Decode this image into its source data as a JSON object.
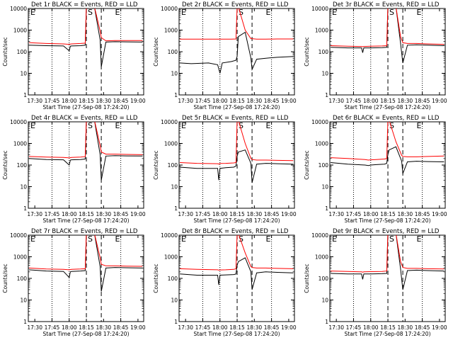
{
  "common": {
    "xlabel": "Start Time (27-Sep-08 17:24:20)",
    "ylabel": "Counts/sec",
    "x_tick_labels": [
      "17:30",
      "17:45",
      "18:00",
      "18:15",
      "18:30",
      "18:45",
      "19:00"
    ],
    "y_tick_labels": [
      "1",
      "10",
      "100",
      "1000",
      "10000"
    ],
    "marker_labels": [
      "E",
      "S",
      "E"
    ],
    "colors": {
      "events": "#000000",
      "lld": "#ff0000",
      "axes": "#000000",
      "background": "#ffffff"
    }
  },
  "chart_data": [
    {
      "type": "line",
      "title": "Det 1r  BLACK = Events, RED = LLD",
      "x_range": [
        "17:24:20",
        "19:05:00"
      ],
      "ylim": [
        1,
        10000
      ],
      "y_scale": "log",
      "grid": "dotted vertical",
      "x": [
        "17:25",
        "17:40",
        "17:55",
        "18:00",
        "18:01",
        "18:02",
        "18:10",
        "18:14",
        "18:15",
        "18:16",
        "18:22",
        "18:27",
        "18:28",
        "18:32",
        "18:40",
        "18:50",
        "19:04"
      ],
      "series": [
        {
          "name": "Events",
          "values": [
            200,
            190,
            185,
            110,
            180,
            185,
            190,
            200,
            12000,
            12000,
            12000,
            350,
            20,
            280,
            290,
            285,
            280
          ]
        },
        {
          "name": "LLD",
          "values": [
            260,
            240,
            230,
            220,
            225,
            230,
            240,
            250,
            12000,
            12000,
            12000,
            900,
            450,
            320,
            330,
            330,
            330
          ]
        }
      ]
    },
    {
      "type": "line",
      "title": "Det 2r  BLACK = Events, RED = LLD",
      "x_range": [
        "17:24:20",
        "19:05:00"
      ],
      "ylim": [
        1,
        10000
      ],
      "y_scale": "log",
      "grid": "dotted vertical",
      "x": [
        "17:25",
        "17:35",
        "17:50",
        "17:58",
        "18:00",
        "18:02",
        "18:10",
        "18:14",
        "18:15",
        "18:16",
        "18:22",
        "18:27",
        "18:28",
        "18:32",
        "18:40",
        "18:50",
        "19:04"
      ],
      "series": [
        {
          "name": "Events",
          "values": [
            30,
            28,
            30,
            25,
            10,
            30,
            35,
            40,
            60,
            500,
            800,
            50,
            15,
            45,
            50,
            55,
            60
          ]
        },
        {
          "name": "LLD",
          "values": [
            380,
            380,
            380,
            380,
            380,
            380,
            380,
            390,
            12000,
            12000,
            1000,
            400,
            400,
            380,
            380,
            390,
            390
          ]
        }
      ]
    },
    {
      "type": "line",
      "title": "Det 3r  BLACK = Events, RED = LLD",
      "x_range": [
        "17:24:20",
        "19:05:00"
      ],
      "ylim": [
        1,
        10000
      ],
      "y_scale": "log",
      "grid": "dotted vertical",
      "x": [
        "17:25",
        "17:40",
        "17:52",
        "17:53",
        "17:54",
        "18:00",
        "18:10",
        "18:14",
        "18:15",
        "18:16",
        "18:22",
        "18:26",
        "18:28",
        "18:32",
        "18:40",
        "18:50",
        "19:04"
      ],
      "series": [
        {
          "name": "Events",
          "values": [
            160,
            150,
            150,
            90,
            150,
            150,
            155,
            160,
            12000,
            12000,
            12000,
            250,
            30,
            200,
            210,
            200,
            190
          ]
        },
        {
          "name": "LLD",
          "values": [
            190,
            180,
            175,
            170,
            175,
            180,
            185,
            190,
            12000,
            12000,
            12000,
            500,
            260,
            240,
            240,
            230,
            220
          ]
        }
      ]
    },
    {
      "type": "line",
      "title": "Det 4r  BLACK = Events, RED = LLD",
      "x_range": [
        "17:24:20",
        "19:05:00"
      ],
      "ylim": [
        1,
        10000
      ],
      "y_scale": "log",
      "grid": "dotted vertical",
      "x": [
        "17:25",
        "17:40",
        "17:55",
        "18:00",
        "18:01",
        "18:02",
        "18:10",
        "18:14",
        "18:15",
        "18:16",
        "18:22",
        "18:27",
        "18:28",
        "18:32",
        "18:40",
        "18:50",
        "19:04"
      ],
      "series": [
        {
          "name": "Events",
          "values": [
            200,
            180,
            175,
            100,
            170,
            175,
            180,
            190,
            12000,
            12000,
            12000,
            300,
            20,
            260,
            270,
            265,
            260
          ]
        },
        {
          "name": "LLD",
          "values": [
            250,
            235,
            225,
            215,
            220,
            225,
            235,
            245,
            12000,
            12000,
            12000,
            800,
            400,
            320,
            320,
            310,
            300
          ]
        }
      ]
    },
    {
      "type": "line",
      "title": "Det 5r  BLACK = Events, RED = LLD",
      "x_range": [
        "17:24:20",
        "19:05:00"
      ],
      "ylim": [
        1,
        10000
      ],
      "y_scale": "log",
      "grid": "dotted vertical",
      "x": [
        "17:25",
        "17:40",
        "17:58",
        "17:59",
        "18:00",
        "18:05",
        "18:12",
        "18:14",
        "18:15",
        "18:16",
        "18:22",
        "18:27",
        "18:28",
        "18:32",
        "18:40",
        "18:50",
        "19:04"
      ],
      "series": [
        {
          "name": "Events",
          "values": [
            80,
            70,
            70,
            20,
            70,
            75,
            80,
            90,
            250,
            400,
            500,
            120,
            15,
            110,
            120,
            115,
            110
          ]
        },
        {
          "name": "LLD",
          "values": [
            130,
            120,
            115,
            110,
            118,
            120,
            125,
            130,
            12000,
            12000,
            1000,
            200,
            180,
            170,
            170,
            165,
            160
          ]
        }
      ]
    },
    {
      "type": "line",
      "title": "Det 6r  BLACK = Events, RED = LLD",
      "x_range": [
        "17:24:20",
        "19:05:00"
      ],
      "ylim": [
        1,
        10000
      ],
      "y_scale": "log",
      "grid": "dotted vertical",
      "x": [
        "17:25",
        "17:40",
        "17:55",
        "17:58",
        "18:00",
        "18:05",
        "18:12",
        "18:14",
        "18:15",
        "18:16",
        "18:22",
        "18:27",
        "18:28",
        "18:32",
        "18:40",
        "18:50",
        "19:04"
      ],
      "series": [
        {
          "name": "Events",
          "values": [
            130,
            110,
            100,
            95,
            100,
            105,
            110,
            120,
            300,
            500,
            700,
            150,
            40,
            140,
            150,
            145,
            140
          ]
        },
        {
          "name": "LLD",
          "values": [
            220,
            200,
            180,
            170,
            175,
            180,
            190,
            200,
            12000,
            12000,
            1200,
            280,
            250,
            240,
            240,
            250,
            260
          ]
        }
      ]
    },
    {
      "type": "line",
      "title": "Det 7r  BLACK = Events, RED = LLD",
      "x_range": [
        "17:24:20",
        "19:05:00"
      ],
      "ylim": [
        1,
        10000
      ],
      "y_scale": "log",
      "grid": "dotted vertical",
      "x": [
        "17:25",
        "17:40",
        "17:55",
        "18:00",
        "18:01",
        "18:02",
        "18:10",
        "18:14",
        "18:15",
        "18:16",
        "18:22",
        "18:27",
        "18:28",
        "18:32",
        "18:40",
        "18:50",
        "19:04"
      ],
      "series": [
        {
          "name": "Events",
          "values": [
            250,
            220,
            210,
            110,
            200,
            210,
            220,
            230,
            12000,
            12000,
            12000,
            350,
            25,
            300,
            320,
            310,
            300
          ]
        },
        {
          "name": "LLD",
          "values": [
            300,
            270,
            260,
            250,
            255,
            260,
            270,
            280,
            12000,
            12000,
            12000,
            900,
            450,
            380,
            380,
            370,
            360
          ]
        }
      ]
    },
    {
      "type": "line",
      "title": "Det 8r  BLACK = Events, RED = LLD",
      "x_range": [
        "17:24:20",
        "19:05:00"
      ],
      "ylim": [
        1,
        10000
      ],
      "y_scale": "log",
      "grid": "dotted vertical",
      "x": [
        "17:25",
        "17:40",
        "17:58",
        "17:59",
        "18:00",
        "18:05",
        "18:12",
        "18:14",
        "18:15",
        "18:16",
        "18:22",
        "18:27",
        "18:28",
        "18:32",
        "18:40",
        "18:50",
        "19:04"
      ],
      "series": [
        {
          "name": "Events",
          "values": [
            160,
            140,
            140,
            50,
            140,
            145,
            150,
            160,
            400,
            600,
            900,
            200,
            30,
            180,
            200,
            190,
            180
          ]
        },
        {
          "name": "LLD",
          "values": [
            280,
            260,
            250,
            240,
            245,
            250,
            260,
            280,
            12000,
            12000,
            1500,
            350,
            320,
            300,
            300,
            290,
            280
          ]
        }
      ]
    },
    {
      "type": "line",
      "title": "Det 9r  BLACK = Events, RED = LLD",
      "x_range": [
        "17:24:20",
        "19:05:00"
      ],
      "ylim": [
        1,
        10000
      ],
      "y_scale": "log",
      "grid": "dotted vertical",
      "x": [
        "17:25",
        "17:40",
        "17:52",
        "17:53",
        "17:54",
        "18:00",
        "18:10",
        "18:14",
        "18:15",
        "18:16",
        "18:22",
        "18:26",
        "18:28",
        "18:32",
        "18:40",
        "18:50",
        "19:04"
      ],
      "series": [
        {
          "name": "Events",
          "values": [
            170,
            160,
            160,
            90,
            160,
            160,
            165,
            170,
            12000,
            12000,
            12000,
            280,
            30,
            230,
            240,
            230,
            220
          ]
        },
        {
          "name": "LLD",
          "values": [
            220,
            210,
            200,
            195,
            200,
            205,
            210,
            220,
            12000,
            12000,
            12000,
            600,
            320,
            290,
            290,
            280,
            270
          ]
        }
      ]
    }
  ]
}
